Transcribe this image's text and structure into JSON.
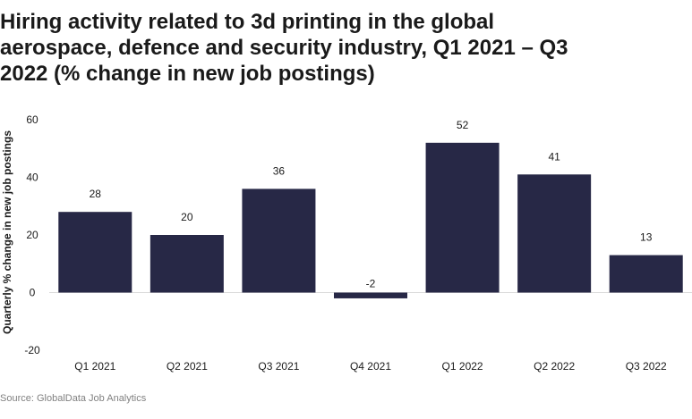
{
  "chart_data": {
    "type": "bar",
    "title": "Hiring activity related to 3d printing in the global aerospace, defence and security industry, Q1 2021 – Q3 2022 (% change in new job postings)",
    "xlabel": "",
    "ylabel": "Quarterly % change in new job postings",
    "categories": [
      "Q1 2021",
      "Q2 2021",
      "Q3 2021",
      "Q4 2021",
      "Q1 2022",
      "Q2 2022",
      "Q3 2022"
    ],
    "values": [
      28,
      20,
      36,
      -2,
      52,
      41,
      13
    ],
    "data_labels": [
      "28",
      "20",
      "36",
      "-2",
      "52",
      "41",
      "13"
    ],
    "ylim": [
      -20,
      60
    ],
    "yticks": [
      -20,
      0,
      20,
      40,
      60
    ],
    "grid": false,
    "bar_color": "#272846",
    "zero_line_color": "#d9d9d9"
  },
  "source": "Source: GlobalData Job Analytics"
}
